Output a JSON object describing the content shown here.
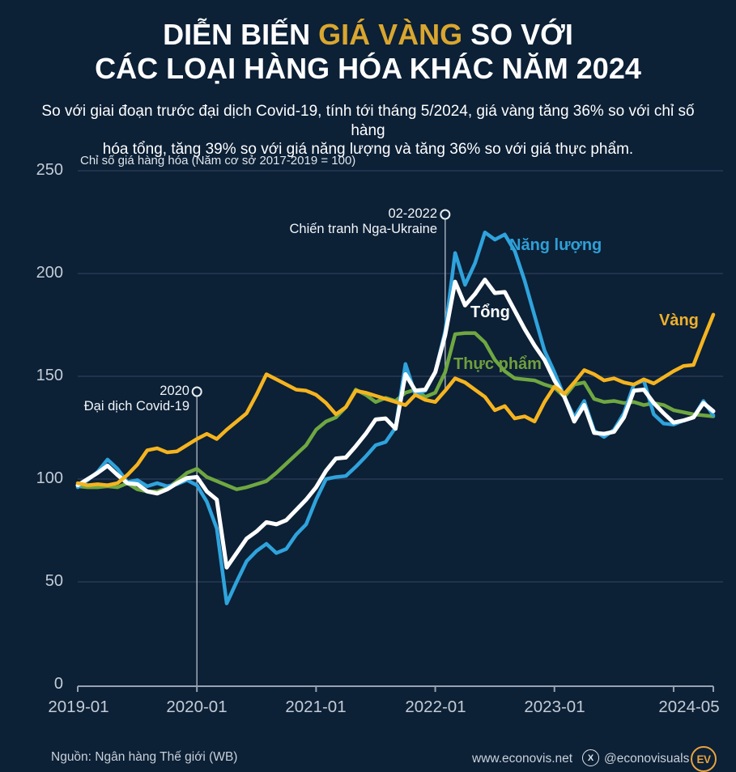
{
  "title": {
    "part1": "DIỄN BIẾN ",
    "highlight": "GIÁ VÀNG",
    "part2": " SO VỚI",
    "line2": "CÁC LOẠI HÀNG HÓA KHÁC NĂM 2024"
  },
  "subtitle": {
    "line1": "So với giai đoạn trước đại dịch Covid-19, tính tới tháng 5/2024, giá vàng tăng 36% so với chỉ số hàng",
    "line2": "hóa tổng, tăng 39% so với giá năng lượng và tăng 36% so với giá thực phẩm."
  },
  "chart_data": {
    "type": "line",
    "note": "Chỉ số giá hàng hóa (Năm cơ sở 2017-2019 = 100)",
    "ylim": [
      0,
      250
    ],
    "y_ticks": [
      0,
      50,
      100,
      150,
      200,
      250
    ],
    "x_tick_labels": [
      "2019-01",
      "2020-01",
      "2021-01",
      "2022-01",
      "2023-01",
      "2024-05"
    ],
    "x_range": "monthly from 2019-01 to 2024-05 (65 points)",
    "grid": "horizontal only",
    "series": [
      {
        "key": "food",
        "name": "Thực phẩm",
        "color": "#6fa741",
        "values": [
          96.5,
          96,
          96,
          96.5,
          96,
          98,
          95,
          94,
          94,
          95.5,
          99,
          103,
          105,
          101,
          99,
          97,
          95,
          96,
          97.5,
          99,
          103,
          107.5,
          112,
          116.5,
          124,
          128,
          130,
          135,
          143.5,
          141,
          137.5,
          139.5,
          138,
          142,
          143.5,
          140,
          142,
          152,
          170.5,
          171,
          171,
          166.5,
          158,
          152.5,
          149,
          148.5,
          148,
          146,
          144.5,
          140,
          146,
          147,
          139,
          137.5,
          138,
          137,
          137.5,
          136,
          137,
          136,
          133.5,
          132.5,
          131.5,
          131,
          130.5
        ]
      },
      {
        "key": "energy",
        "name": "Năng lượng",
        "color": "#2fa3dc",
        "values": [
          96,
          99.5,
          103.5,
          109.5,
          105,
          98.5,
          99.5,
          96.5,
          98,
          96.5,
          97.5,
          99.5,
          97,
          89,
          76,
          39.5,
          50,
          60,
          65,
          68.5,
          64,
          66,
          73,
          78,
          90,
          100,
          101,
          101.5,
          106,
          111,
          116.5,
          118,
          125,
          156,
          141,
          143,
          152,
          172,
          210,
          194.5,
          205,
          220,
          216.5,
          219,
          211,
          196.5,
          179.5,
          162.5,
          152,
          140,
          130,
          138,
          123.5,
          120.5,
          124,
          132,
          146,
          148,
          131.5,
          127,
          126.5,
          128.5,
          130,
          138,
          131
        ]
      },
      {
        "key": "total",
        "name": "Tổng",
        "color": "#ffffff",
        "values": [
          97,
          100,
          103,
          106.5,
          102,
          98,
          97.5,
          94,
          93,
          95,
          98,
          100.5,
          101,
          94,
          90,
          57,
          64,
          71,
          74.5,
          79,
          78,
          80,
          85,
          90,
          96,
          104,
          110,
          110.5,
          116,
          122,
          129,
          129.5,
          124.5,
          151,
          143,
          143.5,
          152,
          170,
          196,
          184.5,
          190,
          197,
          190.5,
          191,
          182,
          173,
          165,
          158,
          148,
          140,
          128,
          136,
          122.5,
          122,
          123,
          130,
          143,
          143.5,
          137,
          132,
          127.5,
          128.5,
          130,
          137,
          133
        ]
      },
      {
        "key": "gold",
        "name": "Vàng",
        "color": "#f5b41f",
        "values": [
          98,
          97,
          97.5,
          97,
          98,
          102,
          107,
          114,
          115,
          113,
          113.5,
          116.5,
          119.5,
          122,
          119.5,
          124,
          128,
          132,
          141,
          151,
          148.5,
          146,
          143.5,
          143,
          141,
          137,
          131.5,
          135,
          143,
          142,
          140.5,
          139,
          137.5,
          136,
          141,
          138.5,
          137.5,
          143,
          149,
          147,
          143.5,
          140,
          133.5,
          135.5,
          129.5,
          130.5,
          128,
          137.5,
          145,
          141.5,
          147,
          153,
          151,
          148,
          149,
          147,
          146,
          148.5,
          146.5,
          149.5,
          152.5,
          155,
          155.5,
          168,
          180
        ]
      }
    ],
    "annotations": [
      {
        "line1": "2020",
        "line2": "Đại dịch Covid-19",
        "month": "2020-01"
      },
      {
        "line1": "02-2022",
        "line2": "Chiến tranh Nga-Ukraine",
        "month": "2022-02"
      }
    ]
  },
  "footer": {
    "source": "Nguồn: Ngân hàng Thế giới (WB)",
    "website": "www.econovis.net",
    "x_logo": "X",
    "x_handle": "@econovisuals",
    "ev_logo": "EV"
  }
}
